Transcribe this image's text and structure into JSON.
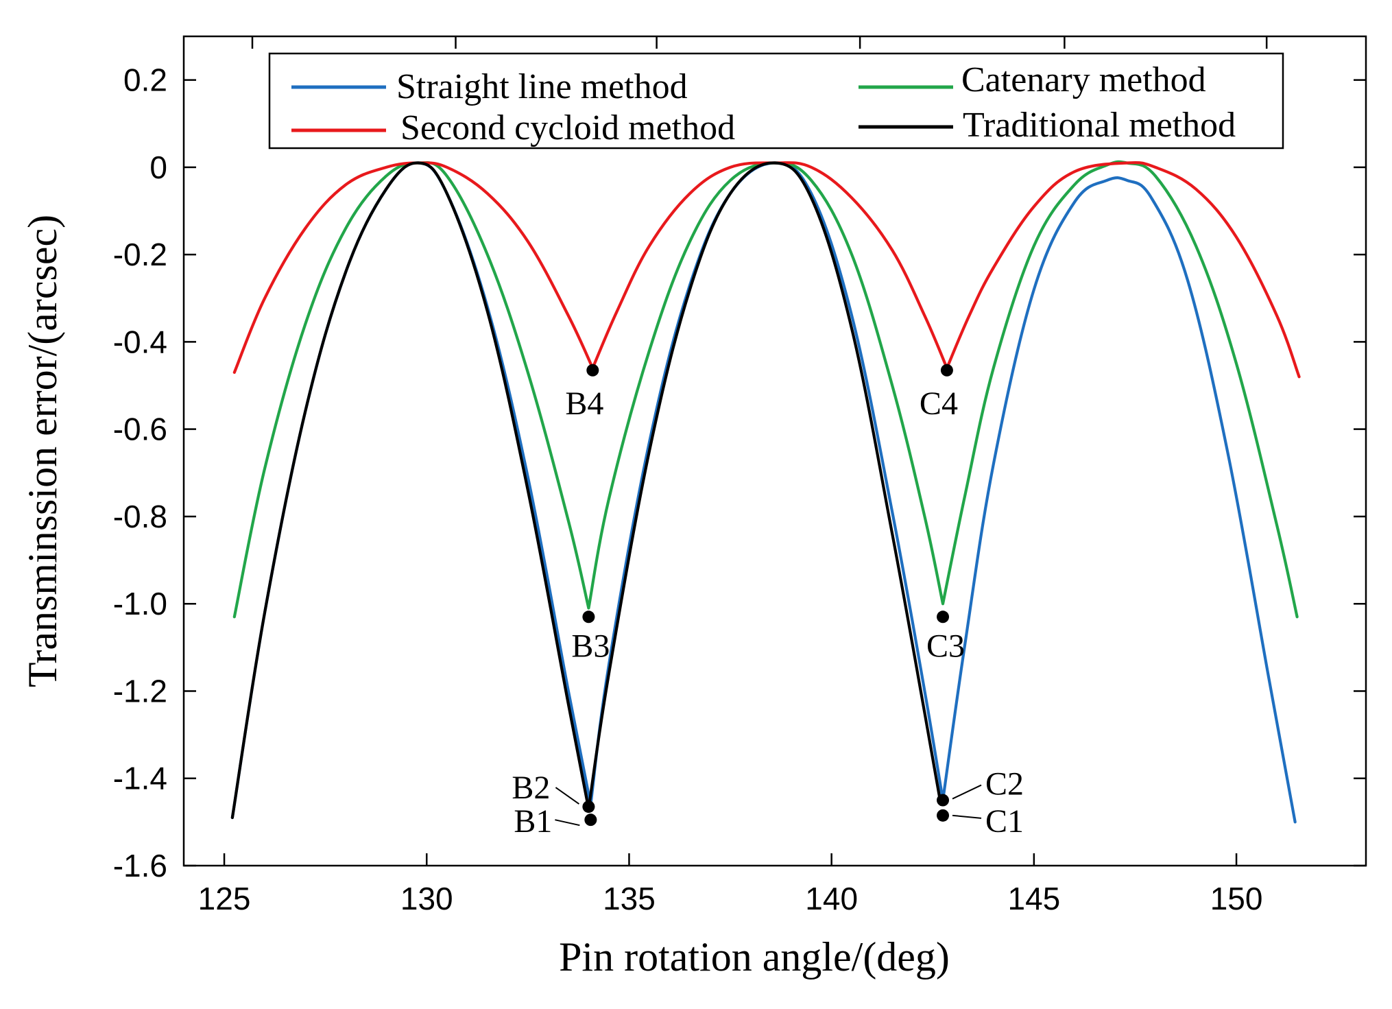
{
  "chart_data": {
    "type": "line",
    "title": "",
    "xlabel": "Pin rotation angle/(deg)",
    "ylabel": "Transminssion error/(arcsec)",
    "xlim": [
      124,
      153.2
    ],
    "ylim": [
      -1.6,
      0.3
    ],
    "xticks": [
      125,
      130,
      135,
      140,
      145,
      150
    ],
    "yticks": [
      0.2,
      0,
      -0.2,
      -0.4,
      -0.6,
      -0.8,
      -1.0,
      -1.2,
      -1.4,
      -1.6
    ],
    "xtick_labels": [
      "125",
      "130",
      "135",
      "140",
      "145",
      "150"
    ],
    "ytick_labels": [
      "0.2",
      "0",
      "-0.2",
      "-0.4",
      "-0.6",
      "-0.8",
      "-1.0",
      "-1.2",
      "-1.4",
      "-1.6"
    ],
    "grid": false,
    "legend_position": "top",
    "series": [
      {
        "name": "Straight line method",
        "color": "#1f6fc0",
        "x": [
          125.2,
          126.0,
          127.0,
          128.0,
          129.0,
          129.8,
          130.5,
          131.5,
          132.5,
          133.5,
          134.05,
          134.5,
          135.5,
          136.5,
          137.5,
          138.6,
          139.5,
          140.5,
          141.5,
          142.3,
          142.75,
          143.3,
          144.0,
          145.0,
          146.0,
          146.8,
          147.3,
          147.9,
          148.8,
          149.8,
          150.8,
          151.45
        ],
        "y": [
          -1.49,
          -1.02,
          -0.56,
          -0.24,
          -0.05,
          0.01,
          -0.06,
          -0.32,
          -0.71,
          -1.2,
          -1.46,
          -1.14,
          -0.63,
          -0.27,
          -0.06,
          0.01,
          -0.06,
          -0.34,
          -0.79,
          -1.2,
          -1.45,
          -1.09,
          -0.68,
          -0.28,
          -0.08,
          -0.03,
          -0.03,
          -0.07,
          -0.26,
          -0.66,
          -1.17,
          -1.5
        ]
      },
      {
        "name": "Catenary method",
        "color": "#22a64a",
        "x": [
          125.25,
          126.0,
          127.0,
          128.0,
          129.0,
          129.8,
          130.5,
          131.5,
          132.5,
          133.5,
          134.0,
          134.5,
          135.5,
          136.5,
          137.5,
          138.6,
          139.5,
          140.5,
          141.5,
          142.3,
          142.75,
          143.3,
          144.0,
          145.0,
          146.0,
          146.8,
          147.3,
          148.0,
          149.0,
          150.0,
          151.0,
          151.5
        ],
        "y": [
          -1.03,
          -0.69,
          -0.36,
          -0.14,
          -0.02,
          0.01,
          -0.02,
          -0.2,
          -0.47,
          -0.81,
          -1.01,
          -0.76,
          -0.42,
          -0.17,
          -0.03,
          0.01,
          -0.03,
          -0.2,
          -0.5,
          -0.8,
          -1.0,
          -0.75,
          -0.46,
          -0.18,
          -0.04,
          0.005,
          0.01,
          -0.02,
          -0.18,
          -0.45,
          -0.82,
          -1.03
        ]
      },
      {
        "name": "Second cycloid method",
        "color": "#e8191c",
        "x": [
          125.25,
          126.0,
          127.0,
          128.0,
          129.0,
          129.8,
          130.5,
          131.5,
          132.5,
          133.5,
          134.1,
          134.7,
          135.5,
          136.5,
          137.5,
          138.6,
          139.5,
          140.5,
          141.5,
          142.3,
          142.85,
          143.4,
          144.0,
          145.0,
          146.0,
          147.3,
          148.0,
          149.0,
          150.0,
          151.0,
          151.55
        ],
        "y": [
          -0.47,
          -0.3,
          -0.14,
          -0.04,
          0.0,
          0.01,
          0.0,
          -0.06,
          -0.17,
          -0.34,
          -0.46,
          -0.33,
          -0.18,
          -0.06,
          0.0,
          0.01,
          0.0,
          -0.07,
          -0.19,
          -0.34,
          -0.46,
          -0.34,
          -0.23,
          -0.09,
          -0.01,
          0.01,
          0.0,
          -0.05,
          -0.16,
          -0.34,
          -0.48
        ]
      },
      {
        "name": "Traditional method",
        "color": "#000000",
        "x": [
          125.2,
          126.0,
          127.0,
          128.0,
          129.0,
          129.8,
          130.5,
          131.5,
          132.5,
          133.5,
          134.0,
          134.5,
          135.5,
          136.5,
          137.5,
          138.6,
          139.5,
          140.5,
          141.5,
          142.3,
          142.7
        ],
        "y": [
          -1.49,
          -1.02,
          -0.56,
          -0.24,
          -0.05,
          0.01,
          -0.06,
          -0.33,
          -0.74,
          -1.23,
          -1.47,
          -1.16,
          -0.65,
          -0.28,
          -0.06,
          0.01,
          -0.07,
          -0.37,
          -0.84,
          -1.25,
          -1.46
        ]
      }
    ],
    "annotations": [
      {
        "label": "B1",
        "x": 134.05,
        "y": -1.495
      },
      {
        "label": "B2",
        "x": 134.0,
        "y": -1.465
      },
      {
        "label": "B3",
        "x": 134.0,
        "y": -1.03
      },
      {
        "label": "B4",
        "x": 134.1,
        "y": -0.465
      },
      {
        "label": "C1",
        "x": 142.75,
        "y": -1.485
      },
      {
        "label": "C2",
        "x": 142.75,
        "y": -1.45
      },
      {
        "label": "C3",
        "x": 142.75,
        "y": -1.03
      },
      {
        "label": "C4",
        "x": 142.85,
        "y": -0.465
      }
    ]
  }
}
